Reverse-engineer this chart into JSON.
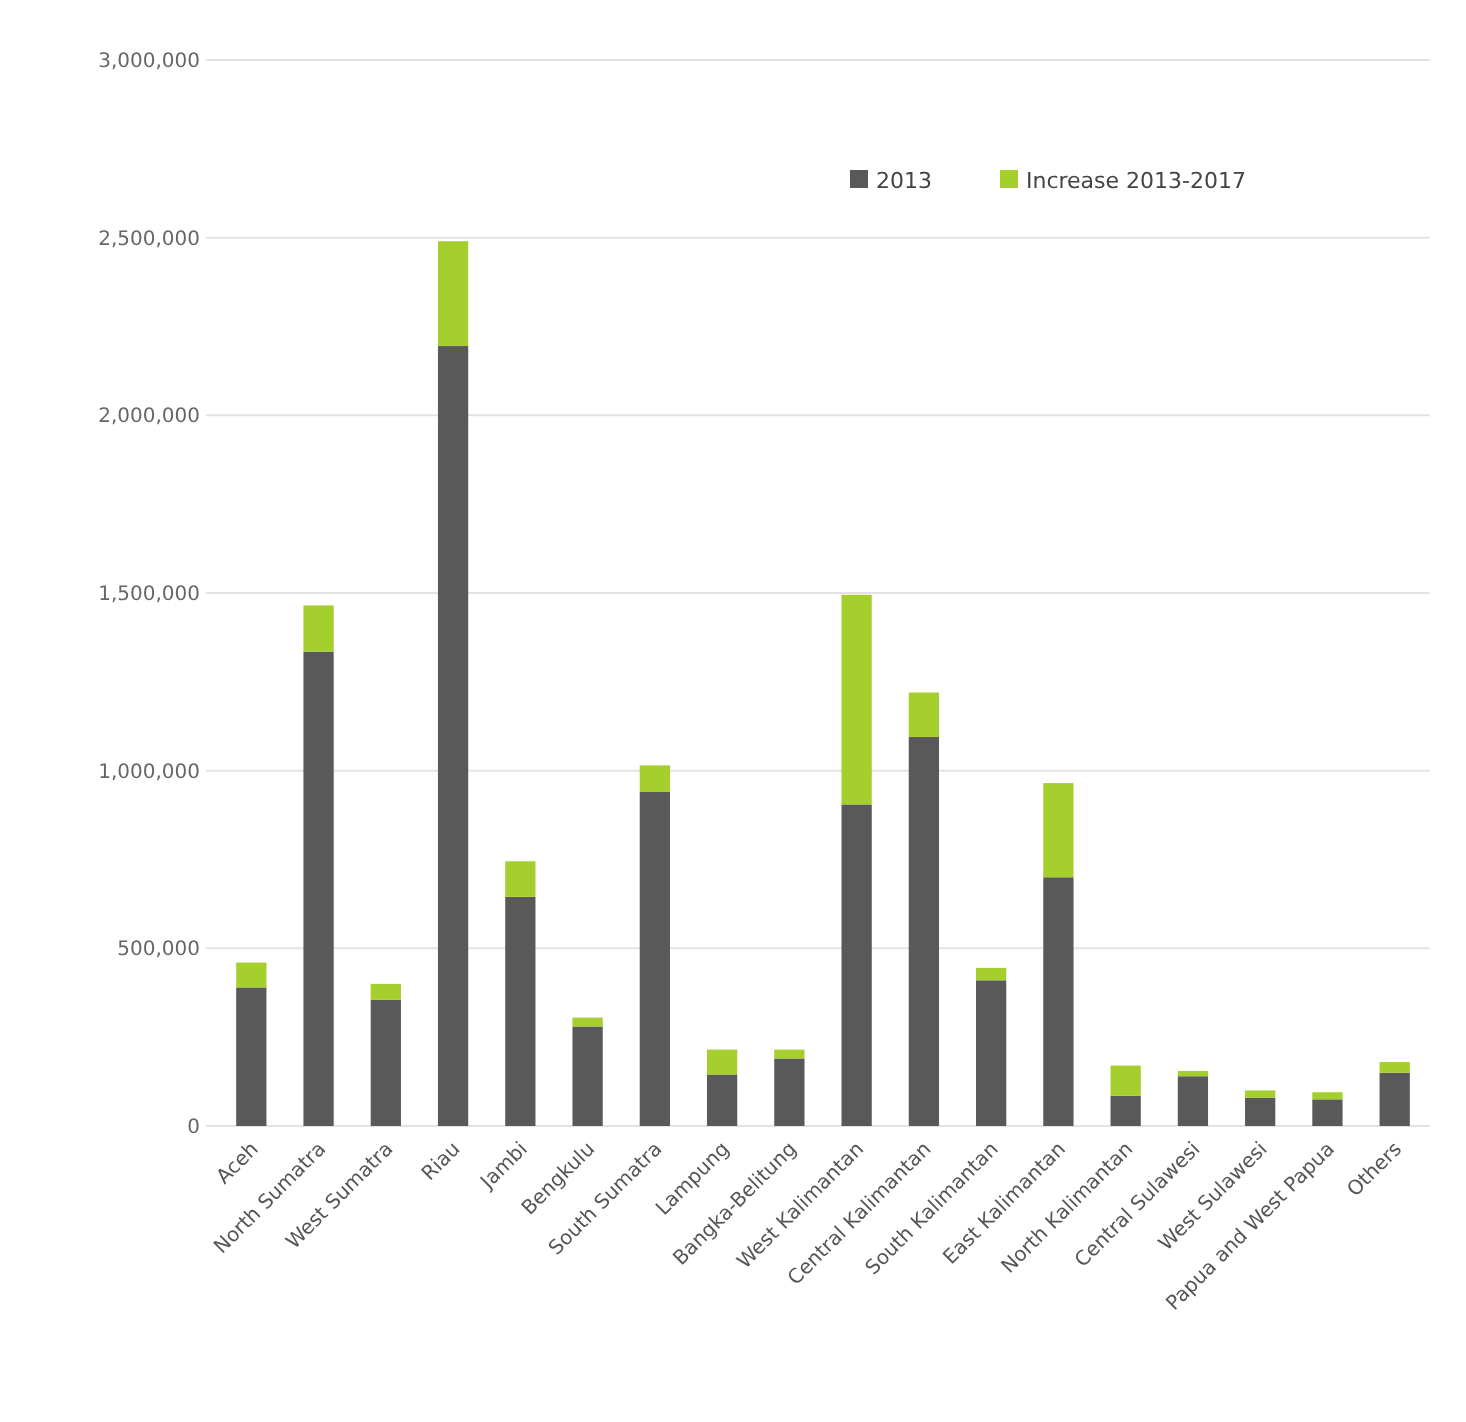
{
  "chart_data": {
    "type": "bar",
    "stacked": true,
    "categories": [
      "Aceh",
      "North Sumatra",
      "West Sumatra",
      "Riau",
      "Jambi",
      "Bengkulu",
      "South Sumatra",
      "Lampung",
      "Bangka-Belitung",
      "West Kalimantan",
      "Central Kalimantan",
      "South Kalimantan",
      "East Kalimantan",
      "North Kalimantan",
      "Central Sulawesi",
      "West Sulawesi",
      "Papua and West Papua",
      "Others"
    ],
    "series": [
      {
        "name": "2013",
        "color": "#595959",
        "values": [
          390000,
          1335000,
          355000,
          2195000,
          645000,
          280000,
          940000,
          145000,
          190000,
          905000,
          1095000,
          410000,
          700000,
          85000,
          140000,
          80000,
          75000,
          150000
        ]
      },
      {
        "name": "Increase 2013-2017",
        "color": "#a5cf2d",
        "values": [
          70000,
          130000,
          45000,
          295000,
          100000,
          25000,
          75000,
          70000,
          25000,
          590000,
          125000,
          35000,
          265000,
          85000,
          15000,
          20000,
          20000,
          30000
        ]
      }
    ],
    "ylim": [
      0,
      3000000
    ],
    "yticks": [
      {
        "value": 0,
        "label": "0"
      },
      {
        "value": 500000,
        "label": "500,000"
      },
      {
        "value": 1000000,
        "label": "1,000,000"
      },
      {
        "value": 1500000,
        "label": "1,500,000"
      },
      {
        "value": 2000000,
        "label": "2,000,000"
      },
      {
        "value": 2500000,
        "label": "2,500,000"
      },
      {
        "value": 3000000,
        "label": "3,000,000"
      }
    ],
    "grid": "y",
    "legend": "top right"
  }
}
